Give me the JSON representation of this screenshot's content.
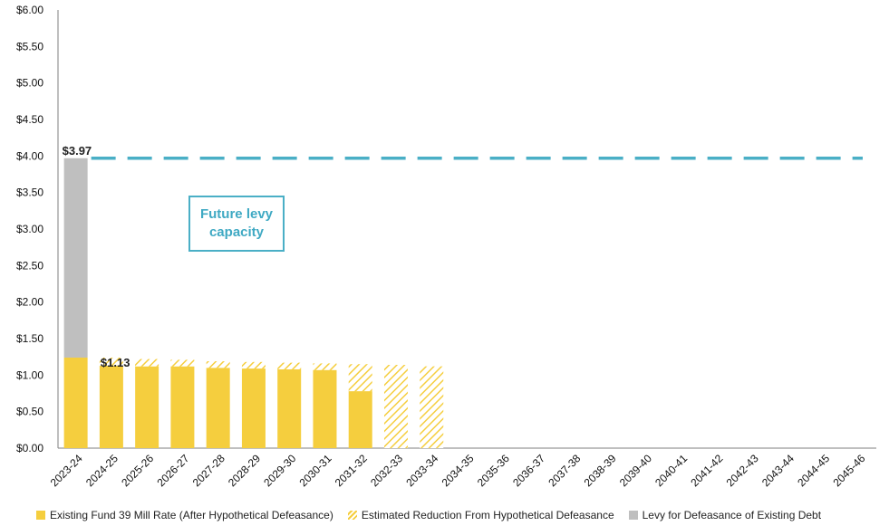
{
  "chart_data": {
    "type": "bar",
    "categories": [
      "2023-24",
      "2024-25",
      "2025-26",
      "2026-27",
      "2027-28",
      "2028-29",
      "2029-30",
      "2030-31",
      "2031-32",
      "2032-33",
      "2033-34",
      "2034-35",
      "2035-36",
      "2036-37",
      "2037-38",
      "2038-39",
      "2039-40",
      "2040-41",
      "2041-42",
      "2042-43",
      "2043-44",
      "2044-45",
      "2045-46"
    ],
    "series": [
      {
        "name": "Existing Fund 39 Mill Rate (After Hypothetical Defeasance)",
        "style": "solid",
        "color": "#F5CE3E",
        "values": [
          1.24,
          1.13,
          1.12,
          1.12,
          1.1,
          1.09,
          1.08,
          1.07,
          0.78,
          0,
          0,
          0,
          0,
          0,
          0,
          0,
          0,
          0,
          0,
          0,
          0,
          0,
          0
        ]
      },
      {
        "name": "Estimated Reduction From Hypothetical Defeasance",
        "style": "hatched",
        "color": "#F5CE3E",
        "values": [
          0,
          0.11,
          0.1,
          0.09,
          0.09,
          0.09,
          0.09,
          0.09,
          0.37,
          1.14,
          1.12,
          0,
          0,
          0,
          0,
          0,
          0,
          0,
          0,
          0,
          0,
          0,
          0
        ]
      },
      {
        "name": "Levy for Defeasance of Existing Debt",
        "style": "solid",
        "color": "#BFBFBF",
        "values": [
          2.73,
          0,
          0,
          0,
          0,
          0,
          0,
          0,
          0,
          0,
          0,
          0,
          0,
          0,
          0,
          0,
          0,
          0,
          0,
          0,
          0,
          0,
          0
        ]
      }
    ],
    "reference_line": {
      "value": 3.97,
      "style": "dashed",
      "color": "#4AAFC6"
    },
    "annotations": [
      {
        "text": "$3.97",
        "category": "2023-24",
        "value": 3.97
      },
      {
        "text": "$1.13",
        "category": "2024-25",
        "value": 1.13
      }
    ],
    "callout": {
      "text": "Future levy capacity",
      "line1": "Future levy",
      "line2": "capacity"
    },
    "y_ticks": [
      "$0.00",
      "$0.50",
      "$1.00",
      "$1.50",
      "$2.00",
      "$2.50",
      "$3.00",
      "$3.50",
      "$4.00",
      "$4.50",
      "$5.00",
      "$5.50",
      "$6.00"
    ],
    "ylim": [
      0,
      6
    ],
    "y_step": 0.5,
    "title": "",
    "xlabel": "",
    "ylabel": "",
    "grid": false,
    "legend_position": "bottom"
  }
}
